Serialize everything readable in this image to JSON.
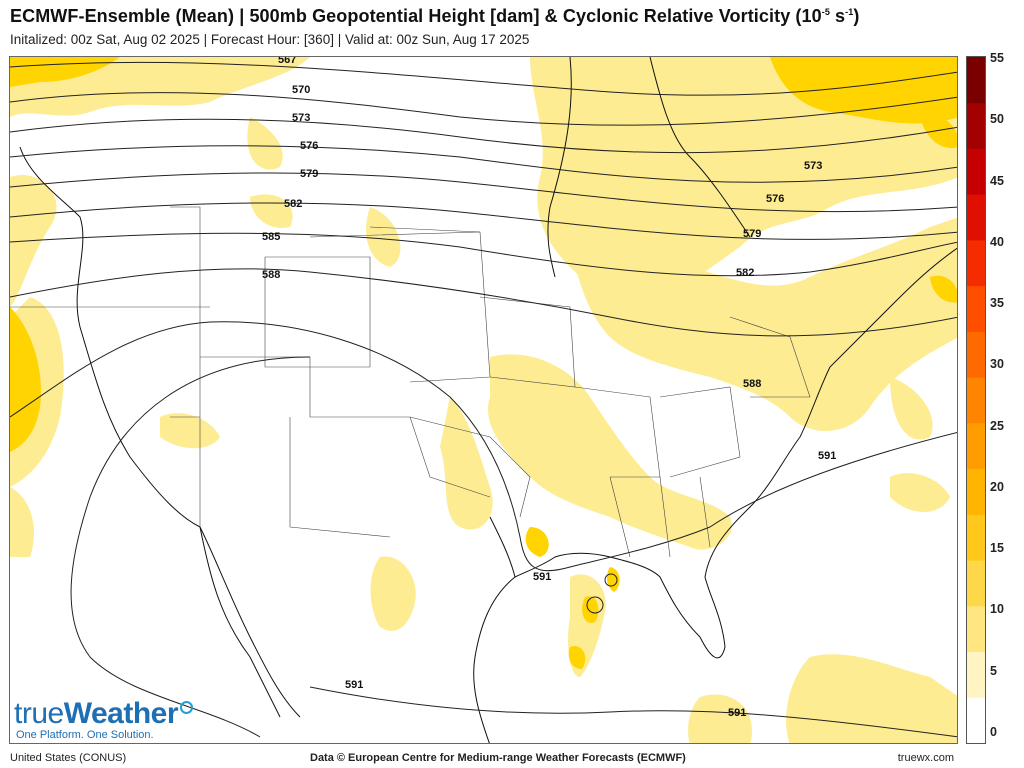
{
  "header": {
    "title": "ECMWF-Ensemble (Mean) | 500mb Geopotential Height [dam] & Cyclonic Relative Vorticity (10",
    "title_sup": "-5",
    "title_mid": " s",
    "title_sup2": "-1",
    "title_end": ")",
    "subtitle": "Initalized: 00z Sat, Aug 02 2025  |  Forecast Hour: [360]  |  Valid at: 00z Sun, Aug 17 2025"
  },
  "map": {
    "contours": [
      {
        "label": "567"
      },
      {
        "label": "570"
      },
      {
        "label": "573"
      },
      {
        "label": "576"
      },
      {
        "label": "579"
      },
      {
        "label": "582"
      },
      {
        "label": "585"
      },
      {
        "label": "588"
      },
      {
        "label": "573"
      },
      {
        "label": "576"
      },
      {
        "label": "579"
      },
      {
        "label": "582"
      },
      {
        "label": "588"
      },
      {
        "label": "591"
      },
      {
        "label": "591"
      },
      {
        "label": "591"
      },
      {
        "label": "591"
      }
    ],
    "shading_color_light": "#fcefa0",
    "shading_color_mid": "#fde25a",
    "shading_color_strong": "#ffd000"
  },
  "colorbar": {
    "labels": [
      "55",
      "50",
      "45",
      "40",
      "35",
      "30",
      "25",
      "20",
      "15",
      "10",
      "5",
      "0"
    ],
    "colors_bottom_to_top": [
      "#ffffff",
      "#fff4c2",
      "#ffe680",
      "#ffd84a",
      "#ffc81a",
      "#ffb400",
      "#ff9d00",
      "#ff8400",
      "#ff6a00",
      "#ff4e00",
      "#f52c00",
      "#e01000",
      "#c60000",
      "#a30000",
      "#7a0000"
    ]
  },
  "logo": {
    "name_a": "true",
    "name_b": "Weather",
    "tagline": "One Platform. One Solution."
  },
  "footer": {
    "left": "United States (CONUS)",
    "center": "Data © European Centre for Medium-range Weather Forecasts (ECMWF)",
    "right": "truewx.com"
  }
}
